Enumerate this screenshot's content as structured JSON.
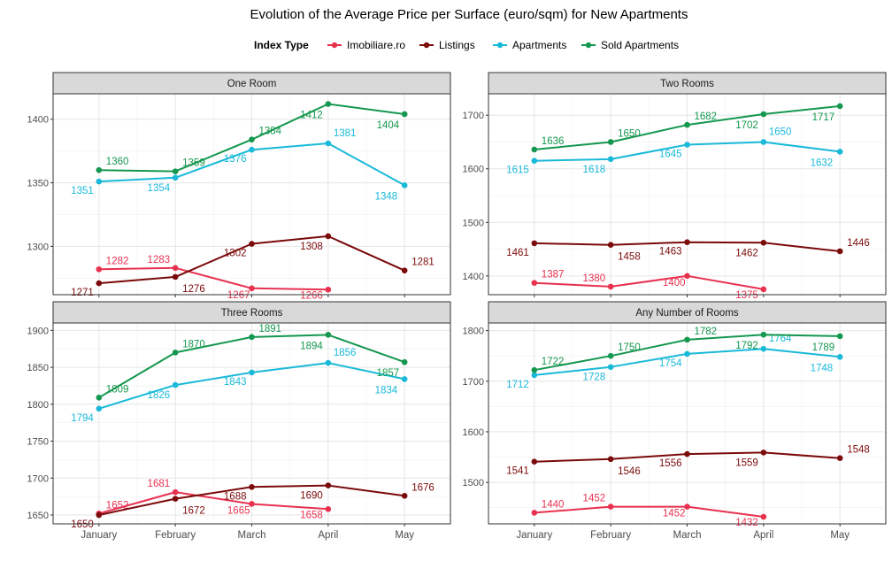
{
  "title": "Evolution of the Average Price per Surface (euro/sqm) for New Apartments",
  "legend": {
    "title": "Index Type",
    "placement": "top"
  },
  "colors": {
    "Imobiliare.ro": "#e8314f",
    "Listings": "#7b0a0a",
    "Apartments": "#19b9d9",
    "Sold Apartments": "#14974e"
  },
  "chart_data": [
    {
      "type": "line",
      "panel": "One Room",
      "x": [
        "January",
        "February",
        "March",
        "April",
        "May"
      ],
      "ylim": [
        1262,
        1420
      ],
      "yticks": [
        1300,
        1350,
        1400
      ],
      "grid": true,
      "series": [
        {
          "name": "Imobiliare.ro",
          "values": [
            1282,
            1283,
            1267,
            1266,
            null
          ]
        },
        {
          "name": "Listings",
          "values": [
            1271,
            1276,
            1302,
            1308,
            1281
          ]
        },
        {
          "name": "Apartments",
          "values": [
            1351,
            1354,
            1376,
            1381,
            1348
          ]
        },
        {
          "name": "Sold Apartments",
          "values": [
            1360,
            1359,
            1384,
            1412,
            1404
          ]
        }
      ]
    },
    {
      "type": "line",
      "panel": "Two Rooms",
      "x": [
        "January",
        "February",
        "March",
        "April",
        "May"
      ],
      "ylim": [
        1365,
        1740
      ],
      "yticks": [
        1400,
        1500,
        1600,
        1700
      ],
      "grid": true,
      "series": [
        {
          "name": "Imobiliare.ro",
          "values": [
            1387,
            1380,
            1400,
            1375,
            null
          ]
        },
        {
          "name": "Listings",
          "values": [
            1461,
            1458,
            1463,
            1462,
            1446
          ]
        },
        {
          "name": "Apartments",
          "values": [
            1615,
            1618,
            1645,
            1650,
            1632
          ]
        },
        {
          "name": "Sold Apartments",
          "values": [
            1636,
            1650,
            1682,
            1702,
            1717
          ]
        }
      ]
    },
    {
      "type": "line",
      "panel": "Three Rooms",
      "x": [
        "January",
        "February",
        "March",
        "April",
        "May"
      ],
      "ylim": [
        1638,
        1910
      ],
      "yticks": [
        1650,
        1700,
        1750,
        1800,
        1850,
        1900
      ],
      "grid": true,
      "series": [
        {
          "name": "Imobiliare.ro",
          "values": [
            1652,
            1681,
            1665,
            1658,
            null
          ]
        },
        {
          "name": "Listings",
          "values": [
            1650,
            1672,
            1688,
            1690,
            1676
          ]
        },
        {
          "name": "Apartments",
          "values": [
            1794,
            1826,
            1843,
            1856,
            1834
          ]
        },
        {
          "name": "Sold Apartments",
          "values": [
            1809,
            1870,
            1891,
            1894,
            1857
          ]
        }
      ]
    },
    {
      "type": "line",
      "panel": "Any Number of Rooms",
      "x": [
        "January",
        "February",
        "March",
        "April",
        "May"
      ],
      "ylim": [
        1418,
        1815
      ],
      "yticks": [
        1500,
        1600,
        1700,
        1800
      ],
      "grid": true,
      "series": [
        {
          "name": "Imobiliare.ro",
          "values": [
            1440,
            1452,
            1452,
            1432,
            null
          ]
        },
        {
          "name": "Listings",
          "values": [
            1541,
            1546,
            1556,
            1559,
            1548
          ]
        },
        {
          "name": "Apartments",
          "values": [
            1712,
            1728,
            1754,
            1764,
            1748
          ]
        },
        {
          "name": "Sold Apartments",
          "values": [
            1722,
            1750,
            1782,
            1792,
            1789
          ]
        }
      ]
    }
  ]
}
